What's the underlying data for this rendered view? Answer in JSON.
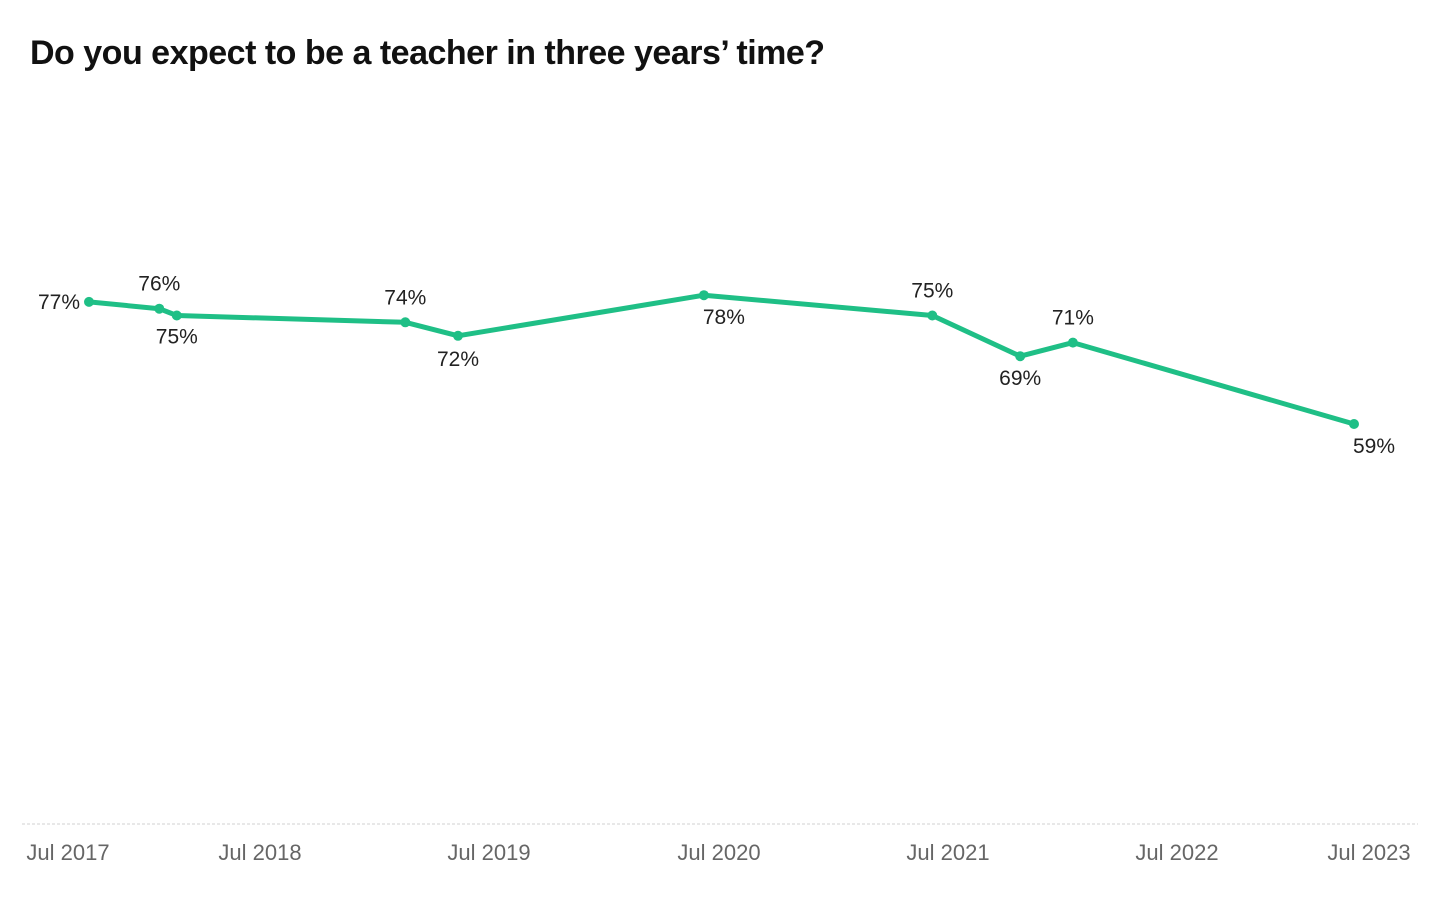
{
  "chart_data": {
    "type": "line",
    "title": "Do you expect to be a teacher in three years’ time?",
    "xlabel": "",
    "ylabel": "",
    "x_tick_labels": [
      "Jul 2017",
      "Jul 2018",
      "Jul 2019",
      "Jul 2020",
      "Jul 2021",
      "Jul 2022",
      "Jul 2023"
    ],
    "x_ticks": [
      "2017-07",
      "2018-07",
      "2019-07",
      "2020-07",
      "2021-07",
      "2022-07",
      "2023-07"
    ],
    "x_range": [
      "2017-06",
      "2023-07"
    ],
    "y_range": [
      0,
      100
    ],
    "grid": false,
    "legend": "none",
    "line_color": "#1fbf86",
    "series": [
      {
        "points": [
          {
            "x": "2017-07",
            "y": 77,
            "label": "77%"
          },
          {
            "x": "2017-11",
            "y": 76,
            "label": "76%"
          },
          {
            "x": "2017-12",
            "y": 75,
            "label": "75%"
          },
          {
            "x": "2019-01",
            "y": 74,
            "label": "74%"
          },
          {
            "x": "2019-04",
            "y": 72,
            "label": "72%"
          },
          {
            "x": "2020-06",
            "y": 78,
            "label": "78%"
          },
          {
            "x": "2021-07",
            "y": 75,
            "label": "75%"
          },
          {
            "x": "2021-12",
            "y": 69,
            "label": "69%"
          },
          {
            "x": "2022-03",
            "y": 71,
            "label": "71%"
          },
          {
            "x": "2023-07",
            "y": 59,
            "label": "59%"
          }
        ]
      }
    ]
  }
}
